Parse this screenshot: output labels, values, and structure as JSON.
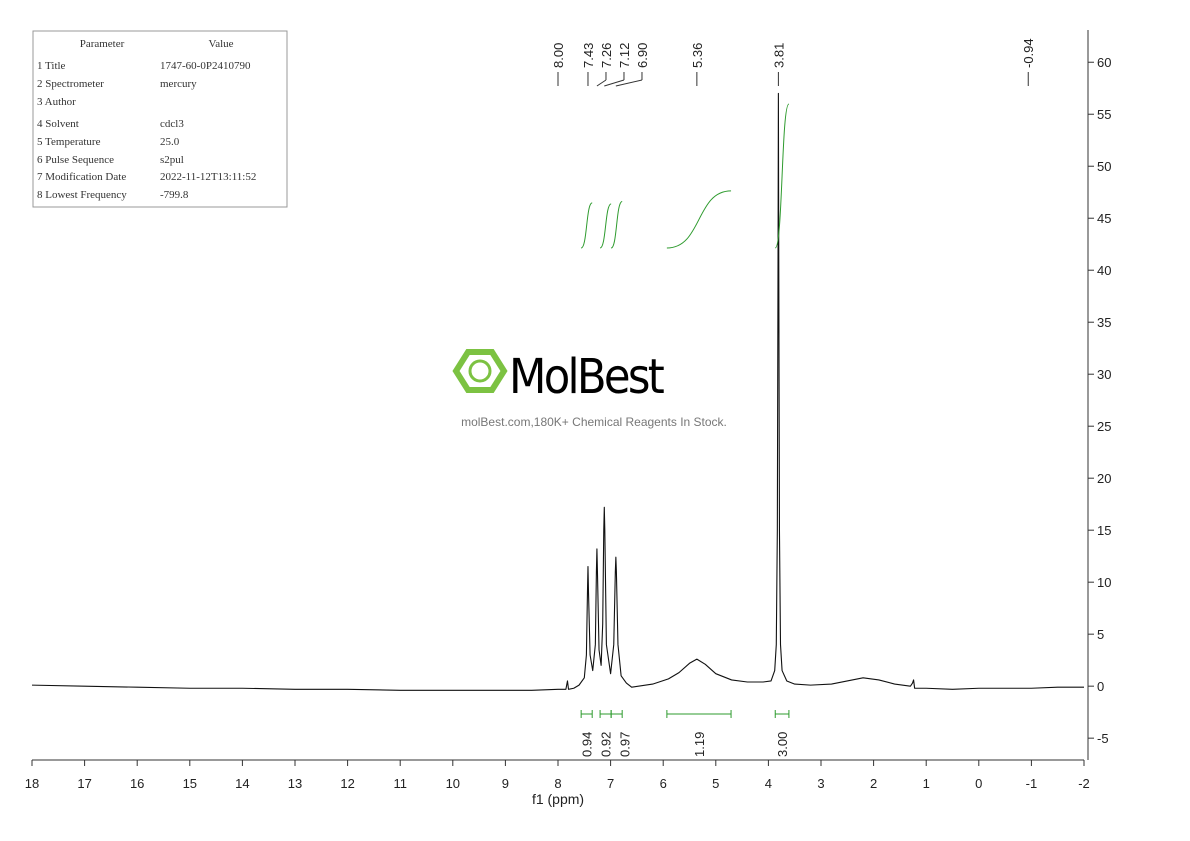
{
  "chart_data": {
    "type": "line",
    "x_label": "f1 (ppm)",
    "xlim": [
      18,
      -2
    ],
    "xticks": [
      18,
      17,
      16,
      15,
      14,
      13,
      12,
      11,
      10,
      9,
      8,
      7,
      6,
      5,
      4,
      3,
      2,
      1,
      0,
      -1,
      -2
    ],
    "ylim": [
      -7.1,
      63.1
    ],
    "yticks": [
      -5,
      0,
      5,
      10,
      15,
      20,
      25,
      30,
      35,
      40,
      45,
      50,
      55,
      60
    ],
    "y_axis_side": "right",
    "color": "#111111",
    "integral_color": "#2e9b2e",
    "x": [
      18,
      17,
      16,
      15,
      14,
      13,
      12,
      11,
      10,
      9,
      8.5,
      8,
      7.85,
      7.82,
      7.8,
      7.7,
      7.6,
      7.5,
      7.46,
      7.44,
      7.43,
      7.42,
      7.39,
      7.34,
      7.29,
      7.27,
      7.26,
      7.25,
      7.22,
      7.18,
      7.15,
      7.13,
      7.12,
      7.11,
      7.08,
      7.0,
      6.94,
      6.91,
      6.9,
      6.89,
      6.86,
      6.8,
      6.7,
      6.6,
      6.2,
      5.9,
      5.7,
      5.5,
      5.36,
      5.2,
      5.0,
      4.7,
      4.4,
      4.1,
      3.95,
      3.88,
      3.85,
      3.83,
      3.815,
      3.81,
      3.805,
      3.79,
      3.77,
      3.74,
      3.65,
      3.5,
      3.2,
      2.8,
      2.5,
      2.2,
      1.9,
      1.6,
      1.3,
      1.26,
      1.24,
      1.22,
      1.0,
      0.5,
      0,
      -0.5,
      -1,
      -1.5,
      -2
    ],
    "values": [
      0.1,
      0.0,
      -0.1,
      -0.2,
      -0.2,
      -0.3,
      -0.3,
      -0.4,
      -0.4,
      -0.4,
      -0.4,
      -0.3,
      -0.3,
      0.5,
      -0.3,
      -0.2,
      0.1,
      0.8,
      3,
      9,
      11.5,
      9,
      3,
      1.5,
      4,
      11,
      13.2,
      11,
      3.5,
      2,
      6,
      15,
      17.2,
      15,
      4,
      1.2,
      4,
      11,
      12.4,
      11,
      4,
      1,
      0.3,
      -0.1,
      0.2,
      0.7,
      1.3,
      2.2,
      2.6,
      2.1,
      1.2,
      0.6,
      0.4,
      0.4,
      0.5,
      1.5,
      4,
      15,
      45,
      57,
      45,
      15,
      4,
      1.5,
      0.5,
      0.2,
      0.1,
      0.2,
      0.5,
      0.8,
      0.6,
      0.2,
      0.0,
      0.3,
      0.6,
      -0.2,
      -0.2,
      -0.3,
      -0.2,
      -0.2,
      -0.2,
      -0.1,
      -0.1
    ],
    "peak_labels": [
      {
        "value": 8,
        "label": "8.00"
      },
      7.43,
      7.26,
      7.12,
      {
        "value": 6.9,
        "label": "6.90"
      },
      5.36,
      3.81,
      -0.94
    ],
    "integrals": [
      {
        "range": [
          7.56,
          7.35
        ],
        "value": 0.94
      },
      {
        "range": [
          7.2,
          6.99
        ],
        "value": 0.92
      },
      {
        "range": [
          6.99,
          6.78
        ],
        "value": 0.97
      },
      {
        "range": [
          5.93,
          4.71
        ],
        "value": 1.19
      },
      {
        "range": [
          3.87,
          3.61
        ],
        "value": 3,
        "label": "3.00"
      }
    ]
  },
  "parameters": {
    "header": [
      "Parameter",
      "Value"
    ],
    "rows": [
      [
        "1 Title",
        "1747-60-0P2410790"
      ],
      [
        "2 Spectrometer",
        "mercury"
      ],
      [
        "3 Author"
      ],
      [
        "4 Solvent",
        "cdcl3"
      ],
      [
        "5 Temperature",
        "25.0"
      ],
      [
        "6 Pulse Sequence",
        "s2pul"
      ],
      [
        "7 Modification Date",
        "2022-11-12T13:11:52"
      ],
      [
        "8 Lowest Frequency",
        "-799.8"
      ]
    ]
  },
  "watermark": {
    "brand": "MolBest",
    "tagline": "molBest.com,180K+ Chemical Reagents In Stock."
  }
}
